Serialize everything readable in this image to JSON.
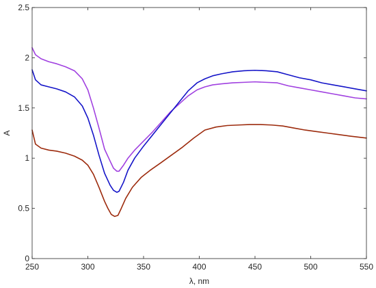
{
  "chart_data": {
    "type": "line",
    "title": "",
    "xlabel": "λ, nm",
    "ylabel": "A",
    "xlim": [
      250,
      550
    ],
    "ylim": [
      0,
      2.5
    ],
    "grid": false,
    "x_ticks": [
      "250",
      "300",
      "350",
      "400",
      "450",
      "500",
      "550"
    ],
    "y_ticks": [
      "0",
      "0.5",
      "1",
      "1.5",
      "2",
      "2.5"
    ],
    "series": [
      {
        "color": "#a040e0",
        "x": [
          250,
          253,
          258,
          265,
          272,
          280,
          288,
          295,
          300,
          305,
          310,
          315,
          320,
          323,
          326,
          328,
          332,
          336,
          342,
          350,
          358,
          366,
          374,
          382,
          390,
          398,
          405,
          412,
          420,
          430,
          440,
          450,
          460,
          470,
          480,
          490,
          500,
          510,
          520,
          530,
          540,
          550
        ],
        "y": [
          2.1,
          2.03,
          1.99,
          1.96,
          1.94,
          1.91,
          1.87,
          1.79,
          1.68,
          1.5,
          1.3,
          1.09,
          0.97,
          0.9,
          0.87,
          0.87,
          0.93,
          1.0,
          1.08,
          1.17,
          1.26,
          1.36,
          1.46,
          1.54,
          1.62,
          1.68,
          1.71,
          1.73,
          1.74,
          1.75,
          1.755,
          1.76,
          1.755,
          1.75,
          1.72,
          1.7,
          1.68,
          1.66,
          1.64,
          1.62,
          1.6,
          1.59
        ]
      },
      {
        "color": "#1414c8",
        "x": [
          250,
          253,
          258,
          265,
          272,
          280,
          288,
          295,
          300,
          305,
          310,
          315,
          320,
          323,
          326,
          328,
          332,
          336,
          342,
          350,
          358,
          366,
          374,
          382,
          390,
          398,
          405,
          412,
          420,
          430,
          440,
          450,
          460,
          470,
          480,
          490,
          500,
          510,
          520,
          530,
          540,
          550
        ],
        "y": [
          1.88,
          1.78,
          1.73,
          1.71,
          1.69,
          1.66,
          1.61,
          1.52,
          1.4,
          1.23,
          1.03,
          0.85,
          0.73,
          0.68,
          0.66,
          0.67,
          0.76,
          0.88,
          1.0,
          1.12,
          1.23,
          1.34,
          1.45,
          1.56,
          1.67,
          1.75,
          1.79,
          1.82,
          1.84,
          1.86,
          1.87,
          1.875,
          1.87,
          1.86,
          1.83,
          1.8,
          1.78,
          1.75,
          1.73,
          1.71,
          1.69,
          1.67
        ]
      },
      {
        "color": "#9c2a0c",
        "x": [
          250,
          253,
          258,
          265,
          272,
          280,
          288,
          295,
          300,
          305,
          310,
          315,
          318,
          321,
          324,
          327,
          330,
          334,
          340,
          348,
          356,
          365,
          375,
          385,
          395,
          405,
          415,
          425,
          435,
          445,
          455,
          465,
          475,
          485,
          495,
          505,
          515,
          525,
          535,
          550
        ],
        "y": [
          1.28,
          1.14,
          1.1,
          1.08,
          1.07,
          1.05,
          1.02,
          0.98,
          0.93,
          0.84,
          0.71,
          0.57,
          0.5,
          0.44,
          0.42,
          0.43,
          0.5,
          0.6,
          0.71,
          0.81,
          0.88,
          0.95,
          1.03,
          1.11,
          1.2,
          1.28,
          1.31,
          1.325,
          1.33,
          1.335,
          1.335,
          1.33,
          1.32,
          1.3,
          1.28,
          1.265,
          1.25,
          1.235,
          1.22,
          1.2
        ]
      }
    ]
  }
}
